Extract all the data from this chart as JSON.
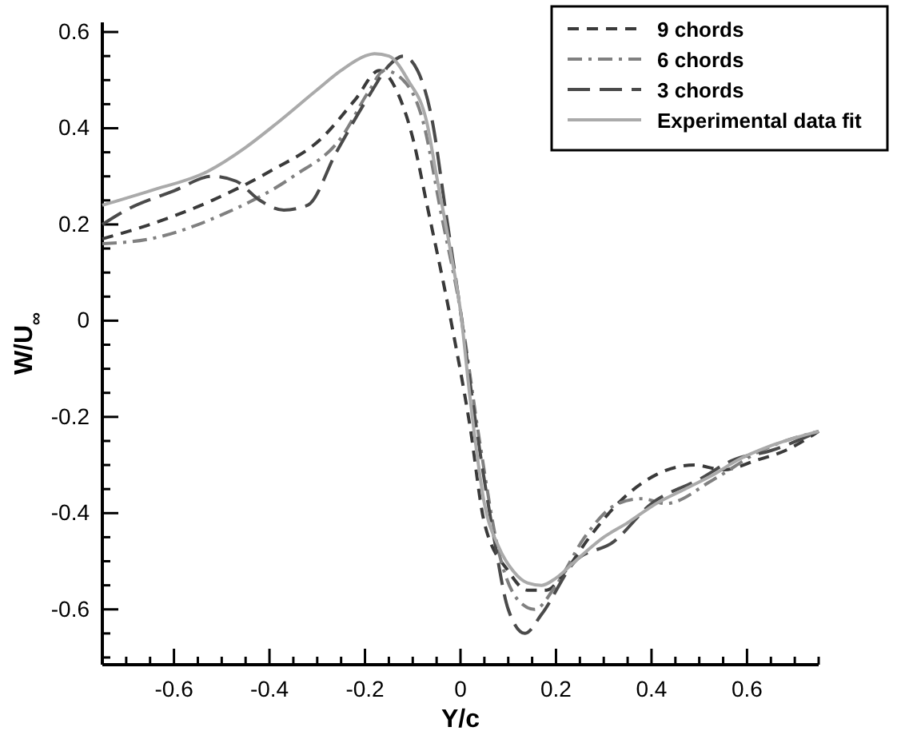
{
  "chart_data": {
    "type": "line",
    "xlabel": "Y/c",
    "ylabel": "W/U$_{∞}$",
    "xlim": [
      -0.75,
      0.75
    ],
    "ylim": [
      -0.715,
      0.62
    ],
    "xticks": [
      {
        "value": -0.7,
        "label": null
      },
      {
        "value": -0.65,
        "label": null
      },
      -0.6,
      {
        "value": -0.55,
        "label": null
      },
      {
        "value": -0.5,
        "label": null
      },
      {
        "value": -0.45,
        "label": null
      },
      -0.4,
      {
        "value": -0.35,
        "label": null
      },
      {
        "value": -0.3,
        "label": null
      },
      {
        "value": -0.25,
        "label": null
      },
      -0.2,
      {
        "value": -0.15,
        "label": null
      },
      {
        "value": -0.1,
        "label": null
      },
      {
        "value": -0.05,
        "label": null
      },
      0,
      {
        "value": 0.05,
        "label": null
      },
      {
        "value": 0.1,
        "label": null
      },
      {
        "value": 0.15,
        "label": null
      },
      0.2,
      {
        "value": 0.25,
        "label": null
      },
      {
        "value": 0.3,
        "label": null
      },
      {
        "value": 0.35,
        "label": null
      },
      0.4,
      {
        "value": 0.45,
        "label": null
      },
      {
        "value": 0.5,
        "label": null
      },
      {
        "value": 0.55,
        "label": null
      },
      0.6,
      {
        "value": 0.65,
        "label": null
      },
      {
        "value": 0.7,
        "label": null
      },
      {
        "value": 0.75,
        "label": null
      }
    ],
    "yticks": [
      {
        "value": -0.7,
        "label": null
      },
      {
        "value": -0.65,
        "label": null
      },
      -0.6,
      {
        "value": -0.55,
        "label": null
      },
      {
        "value": -0.5,
        "label": null
      },
      {
        "value": -0.45,
        "label": null
      },
      -0.4,
      {
        "value": -0.35,
        "label": null
      },
      {
        "value": -0.3,
        "label": null
      },
      {
        "value": -0.25,
        "label": null
      },
      -0.2,
      {
        "value": -0.15,
        "label": null
      },
      {
        "value": -0.1,
        "label": null
      },
      {
        "value": -0.05,
        "label": null
      },
      0,
      {
        "value": 0.05,
        "label": null
      },
      {
        "value": 0.1,
        "label": null
      },
      {
        "value": 0.15,
        "label": null
      },
      0.2,
      {
        "value": 0.25,
        "label": null
      },
      {
        "value": 0.3,
        "label": null
      },
      {
        "value": 0.35,
        "label": null
      },
      0.4,
      {
        "value": 0.45,
        "label": null
      },
      {
        "value": 0.5,
        "label": null
      },
      {
        "value": 0.55,
        "label": null
      },
      0.6
    ],
    "grid": false,
    "legend": "top right",
    "marker": "none",
    "series": [
      {
        "name": "9 chords",
        "color": "#3a3a3a",
        "line_style": "dashed",
        "x": [
          -0.75,
          -0.65,
          -0.52,
          -0.4,
          -0.29,
          -0.22,
          -0.17,
          -0.13,
          -0.1,
          -0.07,
          -0.02,
          0.02,
          0.05,
          0.1,
          0.14,
          0.18,
          0.22,
          0.27,
          0.34,
          0.41,
          0.49,
          0.55,
          0.62,
          0.68,
          0.75
        ],
        "values": [
          0.17,
          0.2,
          0.25,
          0.31,
          0.38,
          0.46,
          0.52,
          0.47,
          0.38,
          0.24,
          0.0,
          -0.22,
          -0.42,
          -0.52,
          -0.56,
          -0.56,
          -0.52,
          -0.45,
          -0.37,
          -0.32,
          -0.3,
          -0.31,
          -0.29,
          -0.27,
          -0.23
        ]
      },
      {
        "name": "6 chords",
        "color": "#808080",
        "line_style": "dashdot",
        "x": [
          -0.75,
          -0.65,
          -0.5,
          -0.35,
          -0.25,
          -0.19,
          -0.16,
          -0.12,
          -0.08,
          -0.04,
          0,
          0.04,
          0.08,
          0.12,
          0.155,
          0.2,
          0.26,
          0.33,
          0.38,
          0.43,
          0.53,
          0.63,
          0.75
        ],
        "values": [
          0.16,
          0.17,
          0.22,
          0.3,
          0.38,
          0.48,
          0.52,
          0.5,
          0.42,
          0.22,
          0.02,
          -0.25,
          -0.48,
          -0.58,
          -0.6,
          -0.55,
          -0.45,
          -0.38,
          -0.37,
          -0.38,
          -0.33,
          -0.27,
          -0.23
        ]
      },
      {
        "name": "3 chords",
        "color": "#4a4a4a",
        "line_style": "longdash",
        "x": [
          -0.75,
          -0.7,
          -0.6,
          -0.52,
          -0.47,
          -0.42,
          -0.37,
          -0.32,
          -0.26,
          -0.19,
          -0.15,
          -0.12,
          -0.09,
          -0.06,
          -0.03,
          0.0,
          0.03,
          0.07,
          0.1,
          0.135,
          0.17,
          0.24,
          0.32,
          0.4,
          0.5,
          0.57,
          0.65,
          0.75
        ],
        "values": [
          0.2,
          0.23,
          0.27,
          0.3,
          0.29,
          0.25,
          0.23,
          0.24,
          0.35,
          0.47,
          0.53,
          0.55,
          0.52,
          0.42,
          0.22,
          0.02,
          -0.2,
          -0.45,
          -0.6,
          -0.65,
          -0.61,
          -0.5,
          -0.46,
          -0.38,
          -0.33,
          -0.29,
          -0.27,
          -0.23
        ]
      },
      {
        "name": "Experimental data fit",
        "color": "#aaaaaa",
        "line_style": "solid",
        "x": [
          -0.75,
          -0.65,
          -0.53,
          -0.45,
          -0.385,
          -0.3,
          -0.25,
          -0.2,
          -0.18,
          -0.15,
          -0.11,
          -0.07,
          -0.05,
          -0.02,
          0.0,
          0.02,
          0.05,
          0.08,
          0.11,
          0.14,
          0.17,
          0.2,
          0.24,
          0.3,
          0.35,
          0.41,
          0.47,
          0.53,
          0.58,
          0.65,
          0.75
        ],
        "values": [
          0.24,
          0.27,
          0.31,
          0.36,
          0.41,
          0.48,
          0.52,
          0.55,
          0.555,
          0.55,
          0.5,
          0.41,
          0.3,
          0.14,
          0.02,
          -0.16,
          -0.38,
          -0.47,
          -0.52,
          -0.545,
          -0.55,
          -0.535,
          -0.5,
          -0.45,
          -0.42,
          -0.38,
          -0.35,
          -0.32,
          -0.29,
          -0.26,
          -0.23
        ]
      }
    ]
  }
}
